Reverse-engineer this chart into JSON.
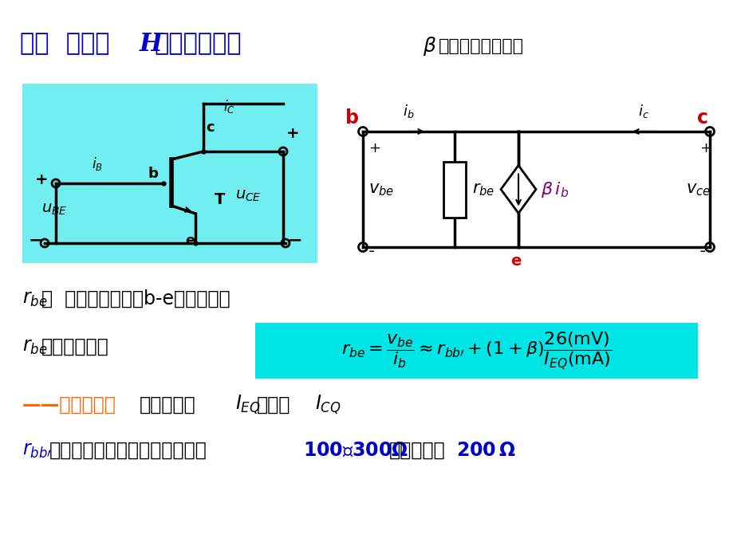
{
  "bg_color": "#ffffff",
  "title_chinese": "一、  晶体管H参数等效模型",
  "title_color": "#0000cc",
  "cyan_color": "#70eef0",
  "subtitle_chinese": "β一般用测试仪测出",
  "formula_box_color": "#00e5e5",
  "line1_chinese": "小信号作用下的b-e间动态电阻",
  "line2_chinese": "可用公式估算",
  "line3_red_chinese": "——公式重要！",
  "line3_black_chinese": "通常，可将",
  "line3_end_chinese": "近似为",
  "line4_start_chinese": "是基区体电阻，低频小功率管在",
  "line4_mid_chinese": "间，一般取",
  "orange_color": "#ff6600",
  "blue_color": "#0000cc",
  "red_color": "#cc0000",
  "purple_color": "#800080"
}
